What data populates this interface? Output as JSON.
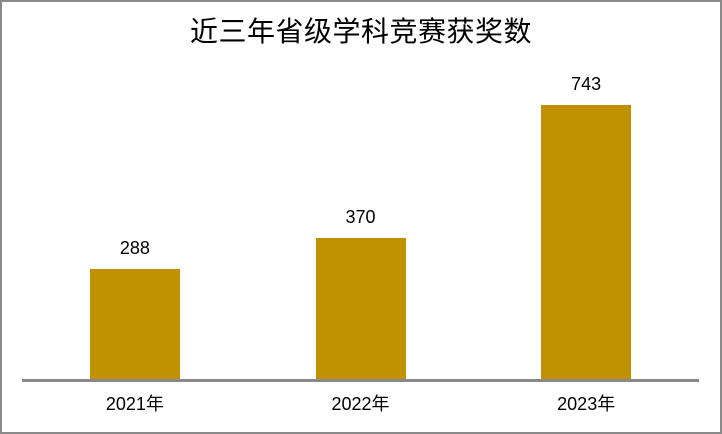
{
  "frame": {
    "border_color": "#898989",
    "background_color": "#ffffff"
  },
  "chart_data": {
    "type": "bar",
    "title": "近三年省级学科竞赛获奖数",
    "categories": [
      "2021年",
      "2022年",
      "2023年"
    ],
    "values": [
      288,
      370,
      743
    ],
    "data_labels": [
      "288",
      "370",
      "743"
    ],
    "xlabel": "",
    "ylabel": "",
    "ylim": [
      0,
      800
    ],
    "y_axis_visible": false,
    "gridlines": false,
    "legend": "none",
    "bar_color": "#BF9000",
    "axis_line_color": "#898989",
    "text_color": "#000000"
  }
}
